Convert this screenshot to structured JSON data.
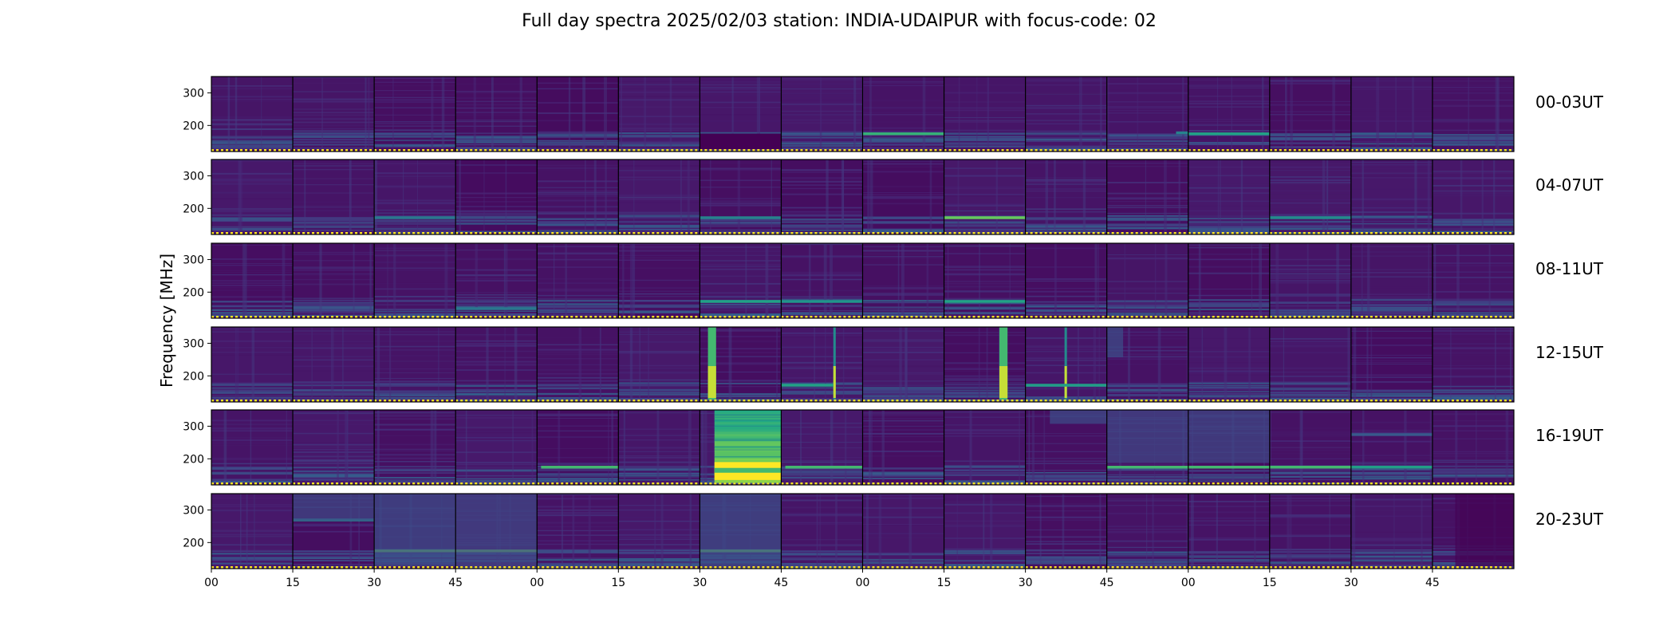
{
  "chart_data": {
    "type": "heatmap",
    "title": "Full day spectra 2025/02/03 station: INDIA-UDAIPUR with focus-code: 02",
    "ylabel": "Frequency [MHz]",
    "xlabel": "",
    "ylim": [
      120,
      350
    ],
    "yticks": [
      200,
      300
    ],
    "xtick_labels": [
      "00",
      "15",
      "30",
      "45",
      "00",
      "15",
      "30",
      "45",
      "00",
      "15",
      "30",
      "45",
      "00",
      "15",
      "30",
      "45"
    ],
    "rows": [
      {
        "label": "00-03UT"
      },
      {
        "label": "04-07UT"
      },
      {
        "label": "08-11UT"
      },
      {
        "label": "12-15UT"
      },
      {
        "label": "16-19UT"
      },
      {
        "label": "20-23UT"
      }
    ],
    "segments_per_row": 16,
    "segment_minutes": 15,
    "colormap": "viridis",
    "color_low": "#440154",
    "color_high": "#fde725",
    "rfi_band_mhz": 175,
    "features": [
      {
        "row": 0,
        "seg": 6,
        "type": "low_region",
        "f0": 120,
        "f1": 175
      },
      {
        "row": 0,
        "seg": 8,
        "type": "hline",
        "f": 175,
        "level": 0.78
      },
      {
        "row": 0,
        "seg": 12,
        "type": "hline",
        "f": 175,
        "level": 0.72
      },
      {
        "row": 0,
        "seg": 11,
        "type": "hline",
        "f": 178,
        "level": 0.55,
        "x0": 0.85,
        "x1": 1
      },
      {
        "row": 1,
        "seg": 9,
        "type": "hline",
        "f": 172,
        "level": 0.85
      },
      {
        "row": 1,
        "seg": 13,
        "type": "hline",
        "f": 172,
        "level": 0.6
      },
      {
        "row": 1,
        "seg": 6,
        "type": "hline",
        "f": 172,
        "level": 0.55
      },
      {
        "row": 1,
        "seg": 2,
        "type": "hline",
        "f": 172,
        "level": 0.5
      },
      {
        "row": 2,
        "seg": 6,
        "type": "hline",
        "f": 172,
        "level": 0.72
      },
      {
        "row": 2,
        "seg": 7,
        "type": "hline",
        "f": 172,
        "level": 0.65
      },
      {
        "row": 2,
        "seg": 9,
        "type": "hline",
        "f": 172,
        "level": 0.72
      },
      {
        "row": 2,
        "seg": 3,
        "type": "hline",
        "f": 150,
        "level": 0.5
      },
      {
        "row": 3,
        "seg": 6,
        "type": "vline",
        "x0": 0.1,
        "x1": 0.2,
        "level": 0.8
      },
      {
        "row": 3,
        "seg": 7,
        "type": "vline",
        "x0": 0.64,
        "x1": 0.67,
        "level": 0.6
      },
      {
        "row": 3,
        "seg": 7,
        "type": "hline",
        "f": 172,
        "level": 0.72,
        "x1": 0.64
      },
      {
        "row": 3,
        "seg": 9,
        "type": "vline",
        "x0": 0.68,
        "x1": 0.78,
        "level": 0.8
      },
      {
        "row": 3,
        "seg": 10,
        "type": "vline",
        "x0": 0.48,
        "x1": 0.51,
        "level": 0.6
      },
      {
        "row": 3,
        "seg": 10,
        "type": "hline",
        "f": 172,
        "level": 0.7
      },
      {
        "row": 3,
        "seg": 11,
        "type": "region",
        "x0": 0,
        "x1": 0.2,
        "f0": 250,
        "f1": 350,
        "level": 0.3
      },
      {
        "row": 4,
        "seg": 6,
        "type": "burst",
        "x0": 0.18,
        "x1": 1
      },
      {
        "row": 4,
        "seg": 4,
        "type": "hline",
        "f": 175,
        "level": 0.8,
        "x0": 0.05
      },
      {
        "row": 4,
        "seg": 7,
        "type": "hline",
        "f": 175,
        "level": 0.8,
        "x0": 0.05
      },
      {
        "row": 4,
        "seg": 11,
        "type": "hline",
        "f": 175,
        "level": 0.8
      },
      {
        "row": 4,
        "seg": 12,
        "type": "hline",
        "f": 175,
        "level": 0.8
      },
      {
        "row": 4,
        "seg": 13,
        "type": "hline",
        "f": 175,
        "level": 0.8
      },
      {
        "row": 4,
        "seg": 14,
        "type": "hline",
        "f": 175,
        "level": 0.7
      },
      {
        "row": 4,
        "seg": 14,
        "type": "hline",
        "f": 275,
        "level": 0.35
      },
      {
        "row": 4,
        "seg": 10,
        "type": "region",
        "x0": 0.3,
        "x1": 1,
        "f0": 300,
        "f1": 350,
        "level": 0.3
      },
      {
        "row": 4,
        "seg": 11,
        "type": "region",
        "x0": 0,
        "x1": 1,
        "f0": 180,
        "f1": 350,
        "level": 0.28
      },
      {
        "row": 4,
        "seg": 12,
        "type": "region",
        "x0": 0,
        "x1": 1,
        "f0": 180,
        "f1": 350,
        "level": 0.28
      },
      {
        "row": 5,
        "seg": 1,
        "type": "hline",
        "f": 270,
        "level": 0.55
      },
      {
        "row": 5,
        "seg": 1,
        "type": "region",
        "x0": 0,
        "x1": 1,
        "f0": 260,
        "f1": 350,
        "level": 0.28
      },
      {
        "row": 5,
        "seg": 2,
        "type": "hline",
        "f": 175,
        "level": 0.85
      },
      {
        "row": 5,
        "seg": 3,
        "type": "hline",
        "f": 175,
        "level": 0.85
      },
      {
        "row": 5,
        "seg": 2,
        "type": "region",
        "x0": 0,
        "x1": 1,
        "f0": 120,
        "f1": 350,
        "level": 0.3
      },
      {
        "row": 5,
        "seg": 3,
        "type": "region",
        "x0": 0,
        "x1": 1,
        "f0": 120,
        "f1": 350,
        "level": 0.28
      },
      {
        "row": 5,
        "seg": 6,
        "type": "hline",
        "f": 175,
        "level": 0.85
      },
      {
        "row": 5,
        "seg": 6,
        "type": "region",
        "x0": 0,
        "x1": 1,
        "f0": 120,
        "f1": 350,
        "level": 0.3
      },
      {
        "row": 5,
        "seg": 15,
        "type": "region",
        "x0": 0.28,
        "x1": 1,
        "f0": 120,
        "f1": 350,
        "level": 0.0
      }
    ]
  }
}
